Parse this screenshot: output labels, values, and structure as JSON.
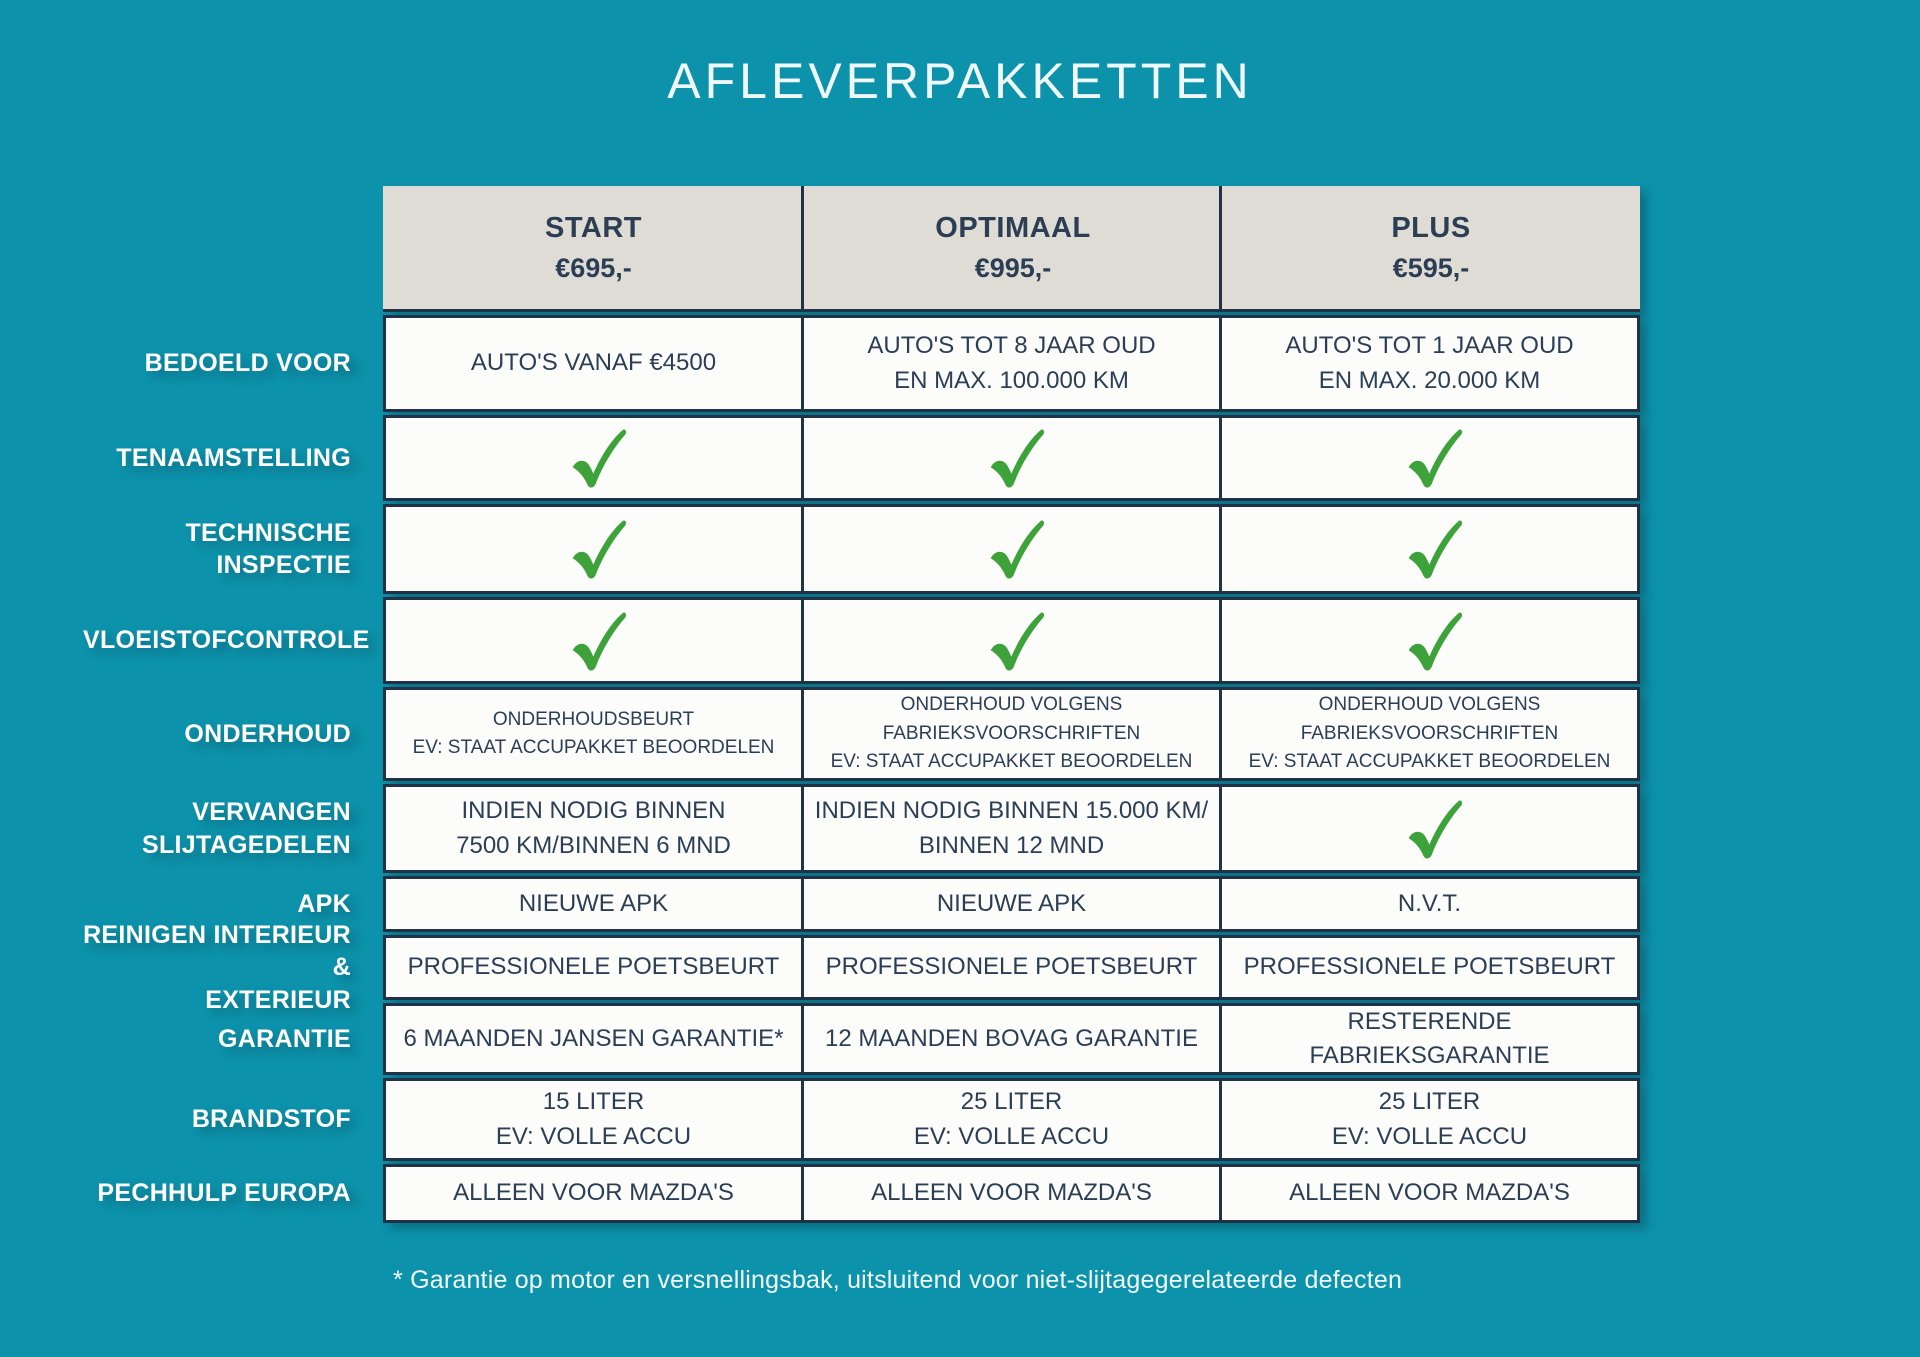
{
  "title": "AFLEVERPAKKETTEN",
  "colors": {
    "bg": "#0C92AB",
    "panel": "#DFDCD5",
    "border": "#1F3246",
    "text": "#2B3E54",
    "label": "#FFFFFF",
    "check": "#3EA23A"
  },
  "packages": [
    {
      "name": "START",
      "price": "€695,-"
    },
    {
      "name": "OPTIMAAL",
      "price": "€995,-"
    },
    {
      "name": "PLUS",
      "price": "€595,-"
    }
  ],
  "rows": [
    {
      "label": [
        "BEDOELD VOOR"
      ],
      "cells": [
        {
          "lines": [
            "AUTO'S VANAF €4500"
          ]
        },
        {
          "lines": [
            "AUTO'S TOT 8 JAAR OUD",
            "EN MAX. 100.000 KM"
          ]
        },
        {
          "lines": [
            "AUTO'S TOT 1 JAAR OUD",
            "EN MAX. 20.000 KM"
          ]
        }
      ]
    },
    {
      "label": [
        "TENAAMSTELLING"
      ],
      "cells": [
        {
          "check": true
        },
        {
          "check": true
        },
        {
          "check": true
        }
      ]
    },
    {
      "label": [
        "TECHNISCHE",
        "INSPECTIE"
      ],
      "cells": [
        {
          "check": true
        },
        {
          "check": true
        },
        {
          "check": true
        }
      ]
    },
    {
      "label": [
        "VLOEISTOFCONTROLE"
      ],
      "cells": [
        {
          "check": true
        },
        {
          "check": true
        },
        {
          "check": true
        }
      ]
    },
    {
      "label": [
        "ONDERHOUD"
      ],
      "cells": [
        {
          "lines": [
            "ONDERHOUDSBEURT",
            "EV: STAAT ACCUPAKKET BEOORDELEN"
          ]
        },
        {
          "lines": [
            "ONDERHOUD VOLGENS",
            "FABRIEKSVOORSCHRIFTEN",
            "EV: STAAT ACCUPAKKET BEOORDELEN"
          ]
        },
        {
          "lines": [
            "ONDERHOUD VOLGENS",
            "FABRIEKSVOORSCHRIFTEN",
            "EV: STAAT ACCUPAKKET BEOORDELEN"
          ]
        }
      ]
    },
    {
      "label": [
        "VERVANGEN",
        "SLIJTAGEDELEN"
      ],
      "cells": [
        {
          "lines": [
            "INDIEN NODIG BINNEN",
            "7500 KM/BINNEN 6 MND"
          ]
        },
        {
          "lines": [
            "INDIEN NODIG BINNEN 15.000 KM/",
            "BINNEN 12 MND"
          ]
        },
        {
          "check": true
        }
      ]
    },
    {
      "label": [
        "APK"
      ],
      "cells": [
        {
          "lines": [
            "NIEUWE APK"
          ]
        },
        {
          "lines": [
            "NIEUWE APK"
          ]
        },
        {
          "lines": [
            "N.V.T."
          ]
        }
      ]
    },
    {
      "label": [
        "REINIGEN INTERIEUR &",
        "EXTERIEUR"
      ],
      "cells": [
        {
          "lines": [
            "PROFESSIONELE POETSBEURT"
          ]
        },
        {
          "lines": [
            "PROFESSIONELE POETSBEURT"
          ]
        },
        {
          "lines": [
            "PROFESSIONELE POETSBEURT"
          ]
        }
      ]
    },
    {
      "label": [
        "GARANTIE"
      ],
      "cells": [
        {
          "lines": [
            "6 MAANDEN JANSEN GARANTIE*"
          ]
        },
        {
          "lines": [
            "12 MAANDEN BOVAG GARANTIE"
          ]
        },
        {
          "lines": [
            "RESTERENDE FABRIEKSGARANTIE"
          ]
        }
      ]
    },
    {
      "label": [
        "BRANDSTOF"
      ],
      "cells": [
        {
          "lines": [
            "15 LITER",
            "EV: VOLLE ACCU"
          ]
        },
        {
          "lines": [
            "25 LITER",
            "EV: VOLLE ACCU"
          ]
        },
        {
          "lines": [
            "25 LITER",
            "EV: VOLLE ACCU"
          ]
        }
      ]
    },
    {
      "label": [
        "PECHHULP EUROPA"
      ],
      "cells": [
        {
          "lines": [
            "ALLEEN VOOR MAZDA'S"
          ]
        },
        {
          "lines": [
            "ALLEEN VOOR MAZDA'S"
          ]
        },
        {
          "lines": [
            "ALLEEN VOOR MAZDA'S"
          ]
        }
      ]
    }
  ],
  "footnote": "* Garantie op motor en versnellingsbak, uitsluitend voor niet-slijtagegerelateerde defecten"
}
